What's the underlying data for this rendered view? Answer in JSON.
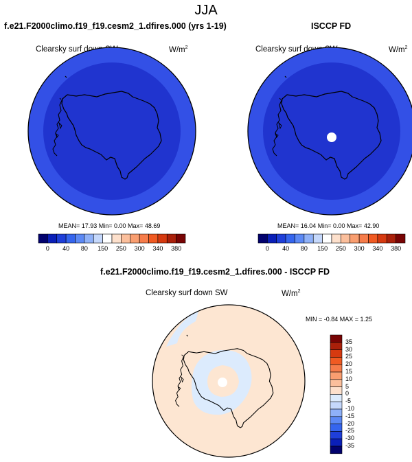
{
  "season": "JJA",
  "panels": {
    "model": {
      "title": "f.e21.F2000climo.f19_f19.cesm2_1.dfires.000 (yrs 1-19)",
      "variable": "Clearsky surf down SW",
      "units_base": "W/m",
      "units_exp": "2",
      "stats": "MEAN= 17.93 Min= 0.00 Max= 48.69"
    },
    "obs": {
      "title": "ISCCP FD",
      "variable": "Clearsky surf down SW",
      "units_base": "W/m",
      "units_exp": "2",
      "stats": "MEAN= 16.04 Min= 0.00 Max= 42.90"
    },
    "diff": {
      "title": "f.e21.F2000climo.f19_f19.cesm2_1.dfires.000 - ISCCP FD",
      "variable": "Clearsky surf down SW",
      "units_base": "W/m",
      "units_exp": "2",
      "stats": "MIN = -0.84 MAX = 1.25"
    }
  },
  "colorbar_abs": {
    "labels": [
      "0",
      "40",
      "80",
      "150",
      "250",
      "300",
      "340",
      "380"
    ],
    "colors": [
      "#02026e",
      "#0a1fb8",
      "#1f3fd9",
      "#3565ee",
      "#5c89f5",
      "#8fb1f8",
      "#c5d8fb",
      "#ffffff",
      "#fde0cc",
      "#fbbf9c",
      "#f99e70",
      "#f67c4a",
      "#f05a22",
      "#d63a10",
      "#aa200a",
      "#780404"
    ]
  },
  "colorbar_diff": {
    "labels": [
      "35",
      "30",
      "25",
      "20",
      "15",
      "10",
      "5",
      "0",
      "-5",
      "-10",
      "-15",
      "-20",
      "-25",
      "-30",
      "-35"
    ],
    "colors": [
      "#780404",
      "#aa200a",
      "#d63a10",
      "#f05a22",
      "#f67c4a",
      "#f99e70",
      "#fbbf9c",
      "#fde0cc",
      "#dcebfd",
      "#c5d8fb",
      "#8fb1f8",
      "#5c89f5",
      "#3565ee",
      "#1f3fd9",
      "#0a1fb8",
      "#02026e"
    ]
  },
  "map_colors": {
    "abs_outer": "#3350e6",
    "abs_inner": "#2034cf",
    "diff_background": "#fde6d2",
    "diff_negative": "#dcebfd",
    "missing": "#ffffff"
  }
}
